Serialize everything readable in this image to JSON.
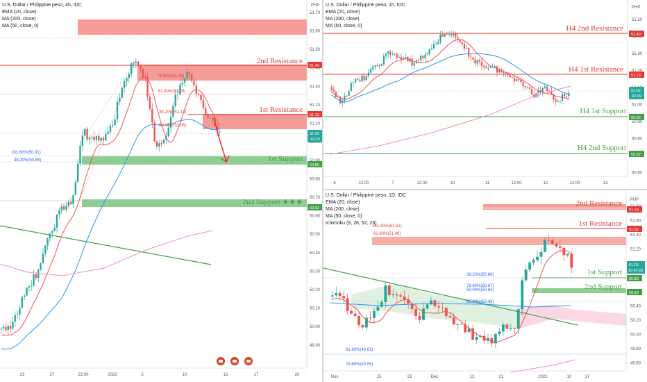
{
  "charts": {
    "h4": {
      "title": "U.S. Dollar / Philippine peso, 4h, IDC",
      "indicators": [
        "EMA (20, close)",
        "MA (200, close)",
        "MA (50, close, 0)"
      ],
      "currency": "PHP",
      "levels": {
        "res2": {
          "label": "2nd Resistance",
          "price": "51.40"
        },
        "res1": {
          "label": "1st Resistance",
          "price": "51.13"
        },
        "sup1": {
          "label": "1st Support",
          "price": "50.86"
        },
        "sup2": {
          "label": "2nd Support ★★★",
          "price": "50.62"
        }
      },
      "last_price": "51.02",
      "countdown": "42:29",
      "fib_labels": [
        "78.60%(51.33)",
        "61.80%(51.25)",
        "38.20%(51.13)",
        "50.00%(51.06)",
        "161.80%(50.91)",
        "38.20%(50.86)"
      ],
      "x_ticks": [
        "23",
        "27",
        "22:00",
        "2022",
        "5",
        "10",
        "13",
        "17",
        "20"
      ],
      "y_ticks": [
        "51.70",
        "51.60",
        "51.50",
        "51.40",
        "51.30",
        "51.20",
        "51.10",
        "51.00",
        "50.90",
        "50.80",
        "50.70",
        "50.60",
        "50.50",
        "50.40",
        "50.30",
        "50.20",
        "50.10",
        "50.00",
        "49.90"
      ]
    },
    "h1": {
      "title": "U.S. Dollar / Philippine peso, 1h, IDC",
      "indicators": [
        "EMA (20, close)",
        "MA (200, close)",
        "MA (50, close, 0)"
      ],
      "currency": "PHP",
      "levels": {
        "res2": {
          "label": "H4 2nd Resistance",
          "price": "51.40"
        },
        "res1": {
          "label": "H4 1st Resistance",
          "price": "51.13"
        },
        "sup1": {
          "label": "H4 1st Support",
          "price": "50.86"
        },
        "sup2": {
          "label": "H4 2nd Support",
          "price": "50.62"
        }
      },
      "last_price": "51.02",
      "countdown": "42:29",
      "x_ticks": [
        "6",
        "12:00",
        "7",
        "12:00",
        "10",
        "11",
        "12:00",
        "12",
        "12:00",
        "13"
      ],
      "y_ticks": [
        "51.50",
        "51.40",
        "51.30",
        "51.20",
        "51.10",
        "51.00",
        "50.90",
        "50.80",
        "50.70",
        "50.60"
      ]
    },
    "d1": {
      "title": "U.S. Dollar / Philippine peso, 1D, IDC",
      "indicators": [
        "EMA (20, close)",
        "MA (200, close)",
        "MA (50, close, 0)",
        "Ichimoku (9, 26, 52, 26)"
      ],
      "currency": "PHP",
      "levels": {
        "res2": {
          "label": "2nd Resistance",
          "price": "51.79"
        },
        "res1": {
          "label": "1st Resistance",
          "price": "51.52"
        },
        "sup1": {
          "label": "1st Support",
          "price": "50.83"
        },
        "sup2": {
          "label": "2nd Support",
          "price": "50.62"
        }
      },
      "last_price": "51.03",
      "countdown": "20:42:29",
      "fib_labels": [
        "161.80%(51.51)",
        "61.80%(51.40)",
        "38.20%(50.86)",
        "78.60%(50.67)",
        "50.00%(50.63)",
        "61.80%(50.43)",
        "61.80%(49.81)",
        "78.60%(49.55)"
      ],
      "x_ticks": [
        "Nov",
        "15",
        "23",
        "Dec",
        "13",
        "21",
        "2022",
        "10",
        "17"
      ],
      "y_ticks": [
        "51.80",
        "51.60",
        "51.40",
        "51.20",
        "51.00",
        "50.80",
        "50.60",
        "50.40",
        "50.20",
        "50.00",
        "49.80",
        "49.60"
      ]
    }
  },
  "colors": {
    "up": "#26a69a",
    "down": "#ef5350",
    "resistance": "#e53935",
    "support": "#43a047",
    "ema": "#ef5350",
    "ma200": "#f48fb1",
    "ma50": "#2196f3",
    "trend": "#43a047"
  }
}
